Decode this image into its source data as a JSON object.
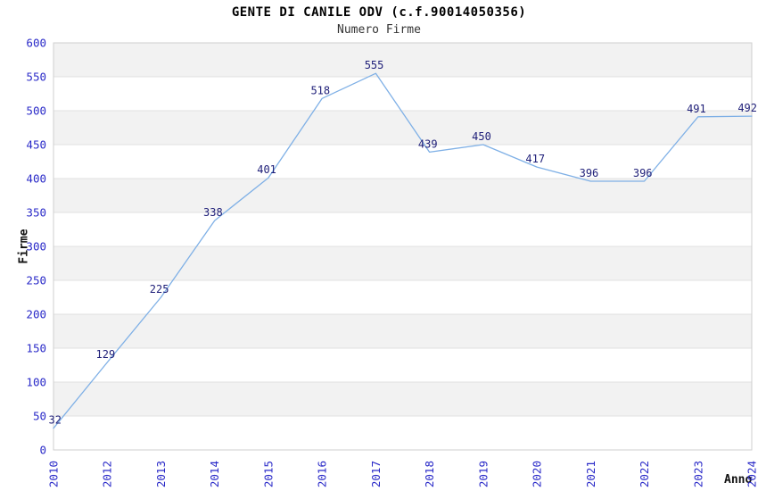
{
  "header": {
    "title": "GENTE DI CANILE ODV (c.f.90014050356)",
    "subtitle": "Numero Firme"
  },
  "chart_data": {
    "type": "line",
    "title": "GENTE DI CANILE ODV (c.f.90014050356)",
    "subtitle": "Numero Firme",
    "xlabel": "Anno",
    "ylabel": "Firme",
    "categories": [
      "2010",
      "2012",
      "2013",
      "2014",
      "2015",
      "2016",
      "2017",
      "2018",
      "2019",
      "2020",
      "2021",
      "2022",
      "2023",
      "2024"
    ],
    "values": [
      32,
      129,
      225,
      338,
      401,
      518,
      555,
      439,
      450,
      417,
      396,
      396,
      491,
      492
    ],
    "series_name": "Numero Firme",
    "ylim": [
      0,
      600
    ],
    "ytick_step": 50,
    "grid": true,
    "legend_position": "none",
    "band_fill": "alternating-horizontal",
    "notes": "year 2011 absent from x axis; point labels shown above each point",
    "colors": {
      "line": "#7fb0e6",
      "tick_label": "#2a2ac8",
      "data_label": "#1e1e78",
      "band_gray": "#f2f2f2",
      "band_white": "#ffffff",
      "grid_line": "#e0e0e0",
      "plot_border": "#cfcfcf",
      "title_text": "#000000",
      "subtitle_text": "#333333",
      "axis_title_text": "#111111"
    }
  }
}
